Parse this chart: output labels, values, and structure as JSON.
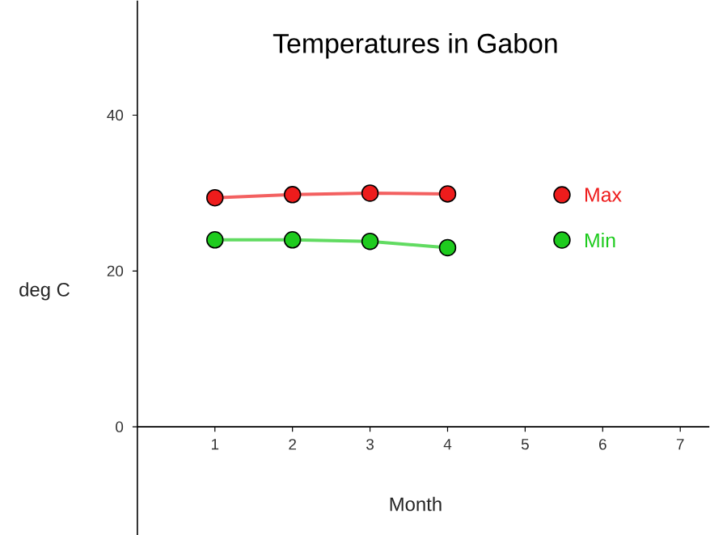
{
  "chart_data": {
    "type": "line",
    "title": "Temperatures in Gabon",
    "xlabel": "Month",
    "ylabel": "deg C",
    "x": [
      1,
      2,
      3,
      4
    ],
    "series": [
      {
        "name": "Max",
        "color": "#ee1c1c",
        "values": [
          29.4,
          29.8,
          30.0,
          29.9
        ]
      },
      {
        "name": "Min",
        "color": "#1ecb1e",
        "values": [
          24.0,
          24.0,
          23.8,
          23.0
        ]
      }
    ],
    "xlim": [
      0,
      7.375
    ],
    "ylim": [
      -13.9,
      54.7
    ],
    "xticks": [
      1,
      2,
      3,
      4,
      5,
      6,
      7
    ],
    "yticks": [
      0,
      20,
      40
    ],
    "marker": "circle",
    "line_style": "solid",
    "legend": "right",
    "grid": false
  }
}
